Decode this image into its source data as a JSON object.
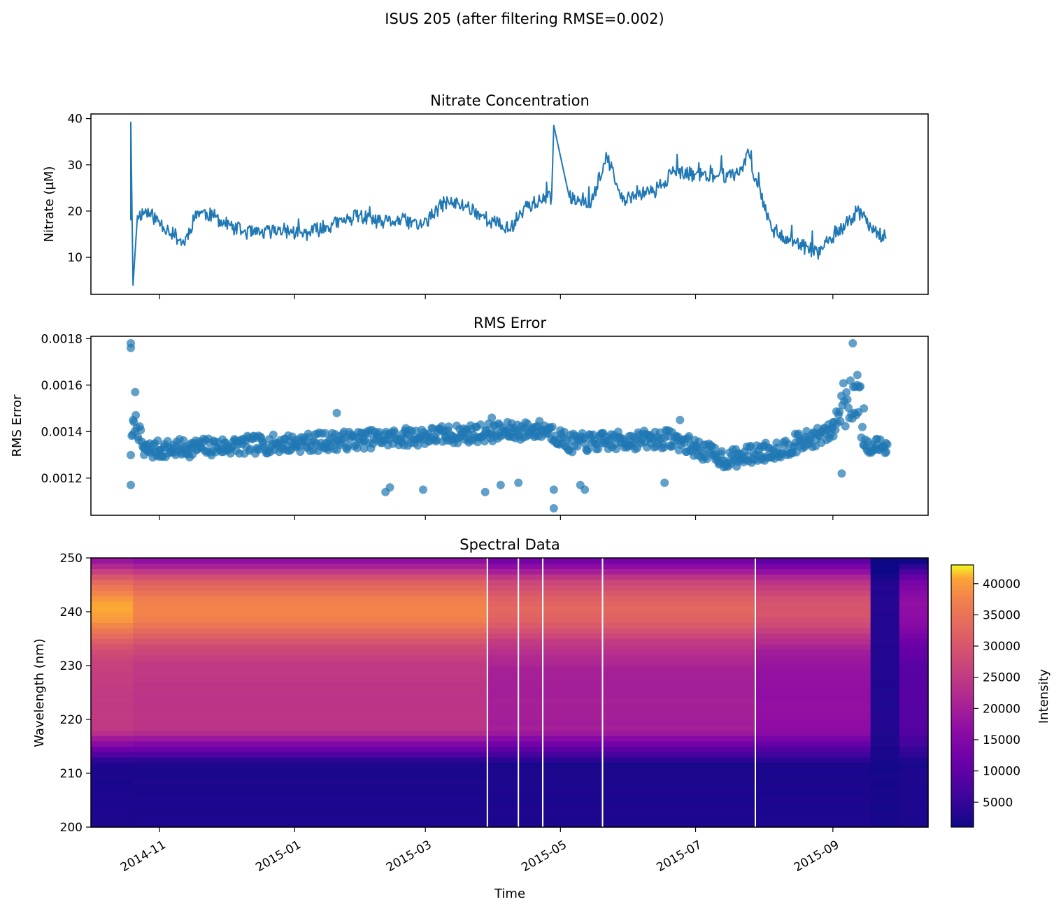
{
  "figure": {
    "suptitle": "ISUS 205 (after filtering RMSE=0.002)"
  },
  "chart_data": [
    {
      "type": "line",
      "title": "Nitrate Concentration",
      "xlabel": "",
      "ylabel": "Nitrate (µM)",
      "ylim": [
        2,
        41
      ],
      "yticks": [
        10,
        20,
        30,
        40
      ],
      "xlim": [
        "2014-10-01",
        "2015-10-14"
      ],
      "color": "#1f77b4",
      "x": [
        "2014-10-19",
        "2014-10-19",
        "2014-10-20",
        "2014-10-22",
        "2014-10-26",
        "2014-11-05",
        "2014-11-12",
        "2014-11-18",
        "2014-11-25",
        "2014-12-05",
        "2014-12-15",
        "2014-12-25",
        "2015-01-05",
        "2015-01-18",
        "2015-01-30",
        "2015-02-08",
        "2015-02-18",
        "2015-02-28",
        "2015-03-10",
        "2015-03-20",
        "2015-03-30",
        "2015-04-08",
        "2015-04-15",
        "2015-04-27",
        "2015-04-28",
        "2015-05-05",
        "2015-05-15",
        "2015-05-22",
        "2015-05-29",
        "2015-06-05",
        "2015-06-12",
        "2015-06-20",
        "2015-07-01",
        "2015-07-10",
        "2015-07-20",
        "2015-07-25",
        "2015-07-28",
        "2015-08-05",
        "2015-08-15",
        "2015-08-25",
        "2015-09-05",
        "2015-09-12",
        "2015-09-20",
        "2015-09-25"
      ],
      "y": [
        18,
        39.2,
        4,
        19,
        20,
        16,
        13,
        20,
        19,
        16,
        15,
        16,
        15,
        17,
        19,
        17.5,
        18,
        17,
        22,
        21,
        18,
        16,
        21,
        23,
        38.5,
        23,
        22,
        31.8,
        22,
        24,
        24,
        28,
        28,
        27.5,
        28,
        32.5,
        27,
        16,
        13,
        11,
        16,
        20,
        16,
        14
      ]
    },
    {
      "type": "scatter",
      "title": "RMS Error",
      "xlabel": "",
      "ylabel": "RMS Error",
      "ylim": [
        0.00104,
        0.00181
      ],
      "yticks": [
        "0.0012",
        "0.0014",
        "0.0016",
        "0.0018"
      ],
      "xlim": [
        "2014-10-01",
        "2015-10-14"
      ],
      "color": "#1f77b4",
      "x": [
        "2014-10-19",
        "2014-10-19",
        "2014-10-19",
        "2014-10-20",
        "2014-10-21",
        "2014-10-25",
        "2014-11-01",
        "2014-11-15",
        "2014-12-01",
        "2014-12-15",
        "2015-01-01",
        "2015-01-15",
        "2015-01-20",
        "2015-02-01",
        "2015-02-11",
        "2015-02-13",
        "2015-02-20",
        "2015-02-28",
        "2015-03-10",
        "2015-03-20",
        "2015-03-28",
        "2015-03-31",
        "2015-04-04",
        "2015-04-08",
        "2015-04-12",
        "2015-04-20",
        "2015-04-28",
        "2015-04-28",
        "2015-05-01",
        "2015-05-10",
        "2015-05-12",
        "2015-05-20",
        "2015-06-01",
        "2015-06-10",
        "2015-06-17",
        "2015-06-24",
        "2015-07-01",
        "2015-07-10",
        "2015-07-20",
        "2015-08-01",
        "2015-08-15",
        "2015-09-01",
        "2015-09-05",
        "2015-09-10",
        "2015-09-12",
        "2015-09-15",
        "2015-09-20",
        "2015-09-25"
      ],
      "y": [
        0.00178,
        0.00176,
        0.00117,
        0.00145,
        0.00157,
        0.0013,
        0.00132,
        0.00133,
        0.00132,
        0.00133,
        0.00134,
        0.00135,
        0.00148,
        0.00136,
        0.00114,
        0.00116,
        0.00137,
        0.00115,
        0.00138,
        0.00137,
        0.00114,
        0.00146,
        0.00117,
        0.00139,
        0.00118,
        0.00142,
        0.00115,
        0.00107,
        0.00137,
        0.00117,
        0.00115,
        0.00135,
        0.00138,
        0.00137,
        0.00118,
        0.00145,
        0.00133,
        0.00128,
        0.00127,
        0.00134,
        0.00139,
        0.00144,
        0.00122,
        0.00178,
        0.0016,
        0.0015,
        0.00133,
        0.00135
      ]
    },
    {
      "type": "heatmap",
      "title": "Spectral Data",
      "xlabel": "Time",
      "ylabel": "Wavelength (nm)",
      "ylim": [
        200,
        250
      ],
      "yticks": [
        200,
        210,
        220,
        230,
        240,
        250
      ],
      "xlim": [
        "2014-10-01",
        "2015-10-14"
      ],
      "xticks": [
        "2014-11",
        "2015-01",
        "2015-03",
        "2015-05",
        "2015-07",
        "2015-09"
      ],
      "colormap": "plasma",
      "colorbar": {
        "label": "Intensity",
        "range": [
          1000,
          43000
        ],
        "ticks": [
          5000,
          10000,
          15000,
          20000,
          25000,
          30000,
          35000,
          40000
        ]
      },
      "data_gaps": [
        "2015-03-29",
        "2015-04-12",
        "2015-04-23",
        "2015-05-20",
        "2015-07-28"
      ],
      "periods": [
        {
          "start": "2014-10-01",
          "end": "2014-10-20",
          "peak_240": 41000,
          "level_225": 25000,
          "level_205": 2500
        },
        {
          "start": "2014-10-20",
          "end": "2015-03-29",
          "peak_240": 38000,
          "level_225": 24000,
          "level_205": 2500
        },
        {
          "start": "2015-03-29",
          "end": "2015-07-28",
          "peak_240": 33000,
          "level_225": 20000,
          "level_205": 2500
        },
        {
          "start": "2015-07-28",
          "end": "2015-09-18",
          "peak_240": 30000,
          "level_225": 17000,
          "level_205": 2500
        },
        {
          "start": "2015-09-18",
          "end": "2015-10-01",
          "peak_240": 3500,
          "level_225": 3000,
          "level_205": 2000
        },
        {
          "start": "2015-10-01",
          "end": "2015-10-14",
          "peak_240": 17000,
          "level_225": 9000,
          "level_205": 2500
        }
      ]
    }
  ]
}
